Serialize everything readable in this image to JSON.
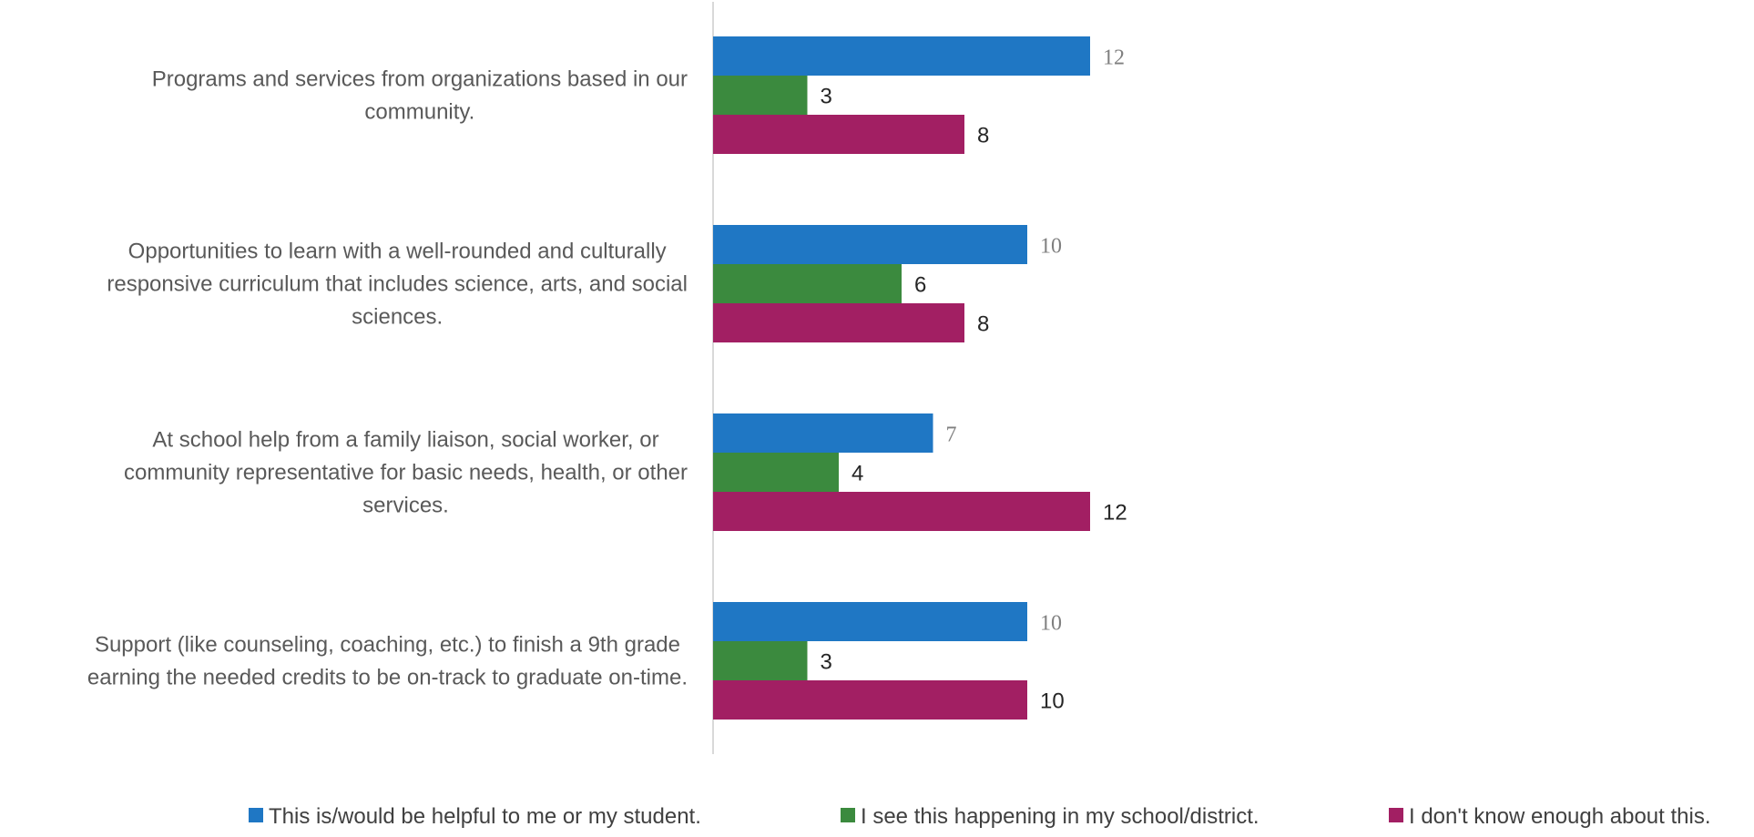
{
  "chart_data": {
    "type": "bar",
    "orientation": "horizontal",
    "categories": [
      [
        "Programs and services from organizations based in our",
        "community."
      ],
      [
        "Opportunities to learn with a well-rounded and culturally",
        "responsive curriculum that includes science, arts, and social",
        "sciences."
      ],
      [
        "At school help from a family liaison, social worker, or",
        "community representative for basic needs, health, or other",
        "services."
      ],
      [
        "Support (like counseling, coaching, etc.) to finish a 9th grade",
        "earning the needed credits to be on-track to graduate on-time."
      ]
    ],
    "series": [
      {
        "name": "This is/would be helpful to me or my student.",
        "color": "#1f77c4",
        "values": [
          12,
          10,
          7,
          10
        ]
      },
      {
        "name": "I see this happening in my school/district.",
        "color": "#3b8a3e",
        "values": [
          3,
          6,
          4,
          3
        ]
      },
      {
        "name": "I don't know enough about this.",
        "color": "#a21f63",
        "values": [
          8,
          8,
          12,
          10
        ]
      }
    ],
    "xlim": [
      0,
      12
    ],
    "data_labels": true,
    "grid": false,
    "legend_position": "bottom"
  }
}
